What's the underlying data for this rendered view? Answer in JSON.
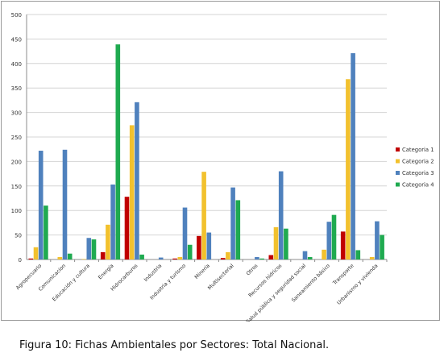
{
  "caption": "Figura 10:  Fichas Ambientales por Sectores: Total Nacional.",
  "chart_data": {
    "type": "bar",
    "categories": [
      "Agropecuario",
      "Comunicacion",
      "Educación y cultura",
      "Energía",
      "Hidrocarburos",
      "Industria",
      "Industria y turismo",
      "Minería",
      "Multisectorial",
      "Otros",
      "Recursos hídricos",
      "Salud pública y seguridad social",
      "Saneamiento básico",
      "Transporte",
      "Urbanismo y vivienda"
    ],
    "series": [
      {
        "name": "Categoria 1",
        "color": "#c00000",
        "values": [
          2,
          0,
          0,
          15,
          128,
          0,
          2,
          48,
          3,
          0,
          9,
          0,
          0,
          57,
          0
        ]
      },
      {
        "name": "Categoria 2",
        "color": "#f2c12e",
        "values": [
          25,
          5,
          1,
          71,
          274,
          0,
          5,
          179,
          15,
          0,
          66,
          0,
          20,
          368,
          5
        ]
      },
      {
        "name": "Categoria 3",
        "color": "#4f81bd",
        "values": [
          222,
          224,
          44,
          153,
          321,
          4,
          106,
          55,
          147,
          5,
          180,
          17,
          77,
          421,
          78
        ]
      },
      {
        "name": "Categoria 4",
        "color": "#1faa50",
        "values": [
          110,
          12,
          41,
          439,
          10,
          0,
          30,
          0,
          121,
          2,
          63,
          5,
          91,
          19,
          50
        ]
      }
    ],
    "ylim": [
      0,
      500
    ],
    "yticks": [
      0,
      50,
      100,
      150,
      200,
      250,
      300,
      350,
      400,
      450,
      500
    ],
    "grid": true,
    "legend": "right"
  }
}
